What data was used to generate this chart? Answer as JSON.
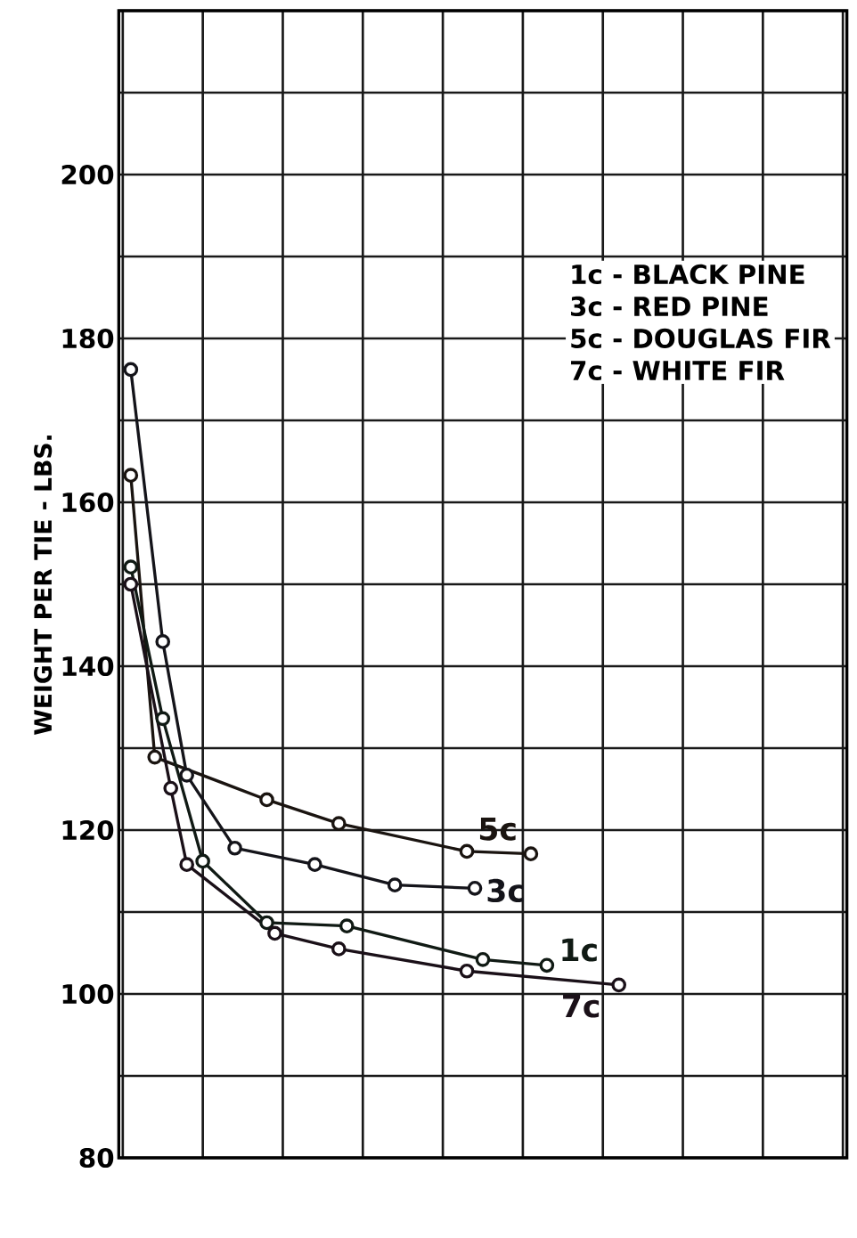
{
  "chart_data": {
    "type": "line",
    "ylabel": "WEIGHT PER TIE - LBS.",
    "annotations": [
      "1c - BLACK PINE",
      "3c - RED PINE",
      "5c - DOUGLAS FIR",
      "7c - WHITE FIR"
    ],
    "categories": [
      null,
      null,
      null,
      null,
      null,
      null,
      null,
      null,
      null,
      null,
      null,
      null,
      null,
      null,
      null,
      null,
      null,
      null,
      null,
      null,
      null,
      null,
      null,
      null,
      null,
      null,
      null,
      null,
      null,
      null,
      null,
      null,
      null,
      null,
      null,
      null,
      null,
      null,
      null,
      null,
      null,
      null,
      null,
      null,
      null,
      null,
      null,
      null,
      null,
      null,
      null,
      null,
      null,
      null,
      null,
      null,
      null,
      null,
      null,
      null,
      null,
      null,
      null,
      null,
      null,
      null,
      null,
      null,
      null,
      null,
      null,
      null,
      null,
      null,
      null,
      null,
      null,
      null,
      null,
      null,
      null,
      null,
      null,
      null,
      null,
      null,
      null,
      null,
      null,
      null,
      null
    ],
    "series": [
      {
        "name": "5c",
        "color": "#1a1410",
        "values": [
          null,
          163.3,
          null,
          null,
          128.9,
          null,
          null,
          null,
          null,
          null,
          null,
          null,
          null,
          null,
          null,
          null,
          null,
          null,
          123.7,
          null,
          null,
          null,
          null,
          null,
          null,
          null,
          null,
          120.8,
          null,
          null,
          null,
          null,
          null,
          null,
          null,
          null,
          null,
          null,
          null,
          null,
          null,
          null,
          null,
          117.4,
          null,
          null,
          null,
          null,
          null,
          null,
          null,
          117.1,
          null,
          null,
          null,
          null,
          null,
          null,
          null,
          null,
          null,
          null,
          null,
          null,
          null,
          null,
          null,
          null,
          null,
          null,
          null,
          null,
          null,
          null,
          null,
          null,
          null,
          null,
          null,
          null,
          null,
          null,
          null,
          null,
          null,
          null,
          null,
          null,
          null,
          null,
          null
        ]
      },
      {
        "name": "3c",
        "color": "#14141a",
        "values": [
          null,
          176.2,
          null,
          null,
          null,
          143.0,
          null,
          null,
          126.7,
          null,
          null,
          null,
          null,
          null,
          117.8,
          null,
          null,
          null,
          null,
          null,
          null,
          null,
          null,
          null,
          115.8,
          null,
          null,
          null,
          null,
          null,
          null,
          null,
          null,
          null,
          113.3,
          null,
          null,
          null,
          null,
          null,
          null,
          null,
          null,
          null,
          112.9,
          null,
          null,
          null,
          null,
          null,
          null,
          null,
          null,
          null,
          null,
          null,
          null,
          null,
          null,
          null,
          null,
          null,
          null,
          null,
          null,
          null,
          null,
          null,
          null,
          null,
          null,
          null,
          null,
          null,
          null,
          null,
          null,
          null,
          null,
          null,
          null,
          null,
          null,
          null,
          null,
          null,
          null,
          null,
          null,
          null,
          null
        ]
      },
      {
        "name": "1c",
        "color": "#101a14",
        "values": [
          null,
          152.1,
          null,
          null,
          null,
          133.6,
          null,
          null,
          null,
          null,
          116.2,
          null,
          null,
          null,
          null,
          null,
          null,
          null,
          108.7,
          null,
          null,
          null,
          null,
          null,
          null,
          null,
          null,
          null,
          108.3,
          null,
          null,
          null,
          null,
          null,
          null,
          null,
          null,
          null,
          null,
          null,
          null,
          null,
          null,
          null,
          null,
          104.2,
          null,
          null,
          null,
          null,
          null,
          null,
          null,
          103.5,
          null,
          null,
          null,
          null,
          null,
          null,
          null,
          null,
          null,
          null,
          null,
          null,
          null,
          null,
          null,
          null,
          null,
          null,
          null,
          null,
          null,
          null,
          null,
          null,
          null,
          null,
          null,
          null,
          null,
          null,
          null,
          null,
          null,
          null,
          null,
          null,
          null
        ]
      },
      {
        "name": "7c",
        "color": "#1a1018",
        "values": [
          null,
          150.0,
          null,
          null,
          null,
          null,
          125.1,
          null,
          115.8,
          null,
          null,
          null,
          null,
          null,
          null,
          null,
          null,
          null,
          null,
          107.4,
          null,
          null,
          null,
          null,
          null,
          null,
          null,
          105.5,
          null,
          null,
          null,
          null,
          null,
          null,
          null,
          null,
          null,
          null,
          null,
          null,
          null,
          null,
          null,
          102.8,
          null,
          null,
          null,
          null,
          null,
          null,
          null,
          null,
          null,
          null,
          null,
          null,
          null,
          null,
          null,
          null,
          null,
          null,
          101.1,
          null,
          null,
          null,
          null,
          null,
          null,
          null,
          null,
          null,
          null,
          null,
          null,
          null,
          null,
          null,
          null,
          null,
          null,
          null,
          null,
          null,
          null,
          null,
          null,
          null,
          null,
          null,
          null
        ]
      }
    ],
    "ylim": [
      80,
      220
    ],
    "yticks": [
      80,
      {
        "value": 90,
        "label": null
      },
      100,
      {
        "value": 110,
        "label": null
      },
      120,
      {
        "value": 130,
        "label": null
      },
      140,
      {
        "value": 150,
        "label": null
      },
      160,
      {
        "value": 170,
        "label": null
      },
      180,
      {
        "value": 190,
        "label": null
      },
      200,
      {
        "value": 210,
        "label": null
      },
      {
        "value": 220,
        "label": null
      }
    ],
    "tick_labels": "y",
    "grid": true,
    "marker": "circle",
    "line_style": "solid"
  }
}
